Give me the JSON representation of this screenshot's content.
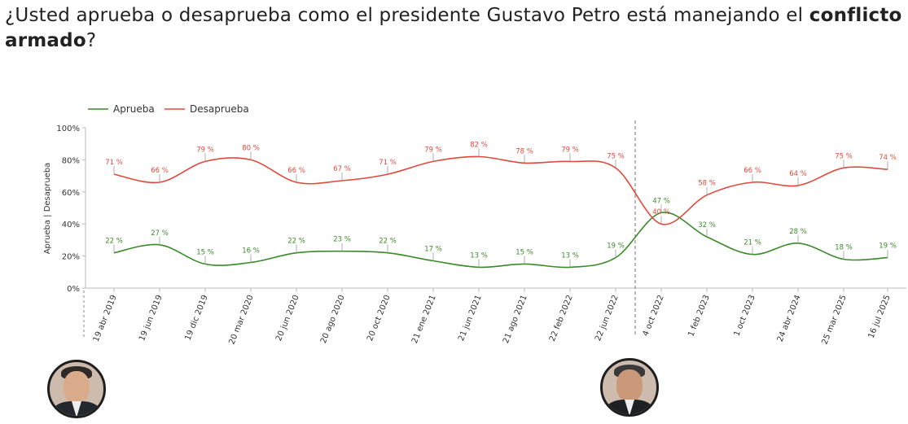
{
  "title": {
    "prefix": "¿Usted aprueba o desaprueba como el presidente Gustavo Petro está manejando el ",
    "bold": "conflicto armado",
    "suffix": "?"
  },
  "colors": {
    "aprueba": "#3a8a2a",
    "desaprueba": "#e04a3c",
    "axis": "#bbbbbb",
    "grid": "#888888"
  },
  "chart_data": {
    "type": "line",
    "title": "¿Usted aprueba o desaprueba como el presidente Gustavo Petro está manejando el conflicto armado?",
    "ylabel": "Aprueba | Desaprueba",
    "xlabel": "",
    "ylim": [
      0,
      100
    ],
    "y_ticks": [
      "0%",
      "20%",
      "40%",
      "60%",
      "80%",
      "100%"
    ],
    "categories": [
      "19 abr 2019",
      "19 jun 2019",
      "19 dic 2019",
      "20 mar 2020",
      "20 jun 2020",
      "20 ago 2020",
      "20 oct 2020",
      "21 ene 2021",
      "21 jun 2021",
      "21 ago 2021",
      "22 feb 2022",
      "22 jun 2022",
      "4 oct 2022",
      "1 feb 2023",
      "1 oct 2023",
      "24 abr 2024",
      "25 mar 2025",
      "16 jul 2025"
    ],
    "series": [
      {
        "name": "Aprueba",
        "values": [
          22,
          27,
          15,
          16,
          22,
          23,
          22,
          17,
          13,
          15,
          13,
          19,
          47,
          32,
          21,
          28,
          18,
          19
        ],
        "labels": [
          "22 %",
          "27 %",
          "15 %",
          "16 %",
          "22 %",
          "23 %",
          "22 %",
          "17 %",
          "13 %",
          "15 %",
          "13 %",
          "19 %",
          "47 %",
          "32 %",
          "21 %",
          "28 %",
          "18 %",
          "19 %"
        ]
      },
      {
        "name": "Desaprueba",
        "values": [
          71,
          66,
          79,
          80,
          66,
          67,
          71,
          79,
          82,
          78,
          79,
          75,
          40,
          58,
          66,
          64,
          75,
          74
        ],
        "labels": [
          "71 %",
          "66 %",
          "79 %",
          "80 %",
          "66 %",
          "67 %",
          "71 %",
          "79 %",
          "82 %",
          "78 %",
          "79 %",
          "75 %",
          "40 %",
          "58 %",
          "66 %",
          "64 %",
          "75 %",
          "74 %"
        ]
      }
    ],
    "period_divider_after_index": 11,
    "legend": "top-left",
    "grid": false
  },
  "portraits": [
    {
      "name": "former-president-portrait"
    },
    {
      "name": "gustavo-petro-portrait"
    }
  ]
}
